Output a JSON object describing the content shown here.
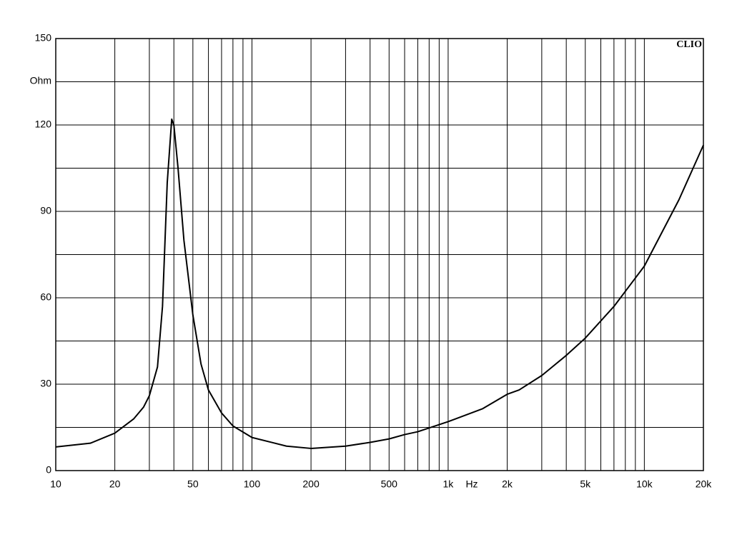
{
  "chart_data": {
    "type": "line",
    "x_axis_label": "Hz",
    "y_axis_label": "Ohm",
    "watermark": "CLIO",
    "xscale": "log",
    "color": "#000000",
    "grid": true,
    "x": [
      10,
      15,
      20,
      25,
      28,
      30,
      33,
      35,
      37,
      39,
      40,
      42,
      45,
      50,
      55,
      60,
      70,
      80,
      100,
      150,
      200,
      300,
      400,
      500,
      600,
      700,
      1000,
      1500,
      2000,
      2300,
      3000,
      4000,
      5000,
      7000,
      10000,
      15000,
      20000
    ],
    "values": [
      8.2,
      9.5,
      13,
      18,
      22,
      26,
      36,
      57,
      100,
      122,
      120,
      105,
      80,
      54,
      37,
      28,
      20,
      15.5,
      11.5,
      8.5,
      7.7,
      8.5,
      9.8,
      11,
      12.5,
      13.5,
      17,
      21.5,
      26.5,
      28,
      33,
      40,
      46,
      57,
      71,
      94,
      113
    ],
    "xlim": [
      10,
      20000
    ],
    "ylim": [
      0,
      150
    ],
    "xticks": [
      10,
      20,
      50,
      100,
      200,
      500,
      {
        "value": 1000,
        "label": "1k"
      },
      {
        "value": 2000,
        "label": "2k"
      },
      {
        "value": 5000,
        "label": "5k"
      },
      {
        "value": 10000,
        "label": "10k"
      },
      {
        "value": 20000,
        "label": "20k"
      }
    ],
    "x_minor_grid": [
      30,
      40,
      60,
      70,
      80,
      90,
      300,
      400,
      600,
      700,
      800,
      900,
      3000,
      4000,
      6000,
      7000,
      8000,
      9000
    ],
    "yticks": [
      0,
      30,
      60,
      90,
      120,
      150
    ],
    "y_minor_grid": [
      15,
      45,
      75,
      105,
      135
    ]
  }
}
